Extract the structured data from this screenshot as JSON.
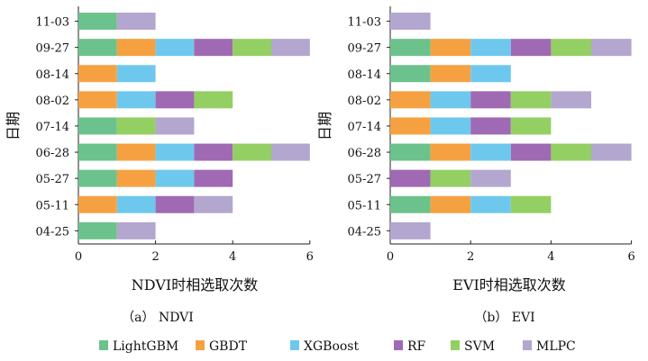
{
  "legend": {
    "items": [
      "LightGBM",
      "GBDT",
      "XGBoost",
      "RF",
      "SVM",
      "MLPC"
    ]
  },
  "colors": {
    "LightGBM": "#6cc28c",
    "GBDT": "#f5a142",
    "XGBoost": "#6ec8ee",
    "RF": "#a069b3",
    "SVM": "#93cf62",
    "MLPC": "#b3a6cf"
  },
  "chart_data": [
    {
      "type": "bar",
      "orientation": "horizontal",
      "stacked": true,
      "caption": "（a） NDVI",
      "xlabel": "NDVI时相选取次数",
      "ylabel": "日期",
      "xlim": [
        0,
        6
      ],
      "xticks": [
        "0",
        "2",
        "4",
        "6"
      ],
      "categories": [
        "11-03",
        "09-27",
        "08-14",
        "08-02",
        "07-14",
        "06-28",
        "05-27",
        "05-11",
        "04-25"
      ],
      "series": [
        {
          "name": "LightGBM",
          "values": [
            1,
            1,
            0,
            0,
            1,
            1,
            1,
            0,
            1
          ]
        },
        {
          "name": "GBDT",
          "values": [
            0,
            1,
            1,
            1,
            0,
            1,
            1,
            1,
            0
          ]
        },
        {
          "name": "XGBoost",
          "values": [
            0,
            1,
            1,
            1,
            0,
            1,
            1,
            1,
            0
          ]
        },
        {
          "name": "RF",
          "values": [
            0,
            1,
            0,
            1,
            0,
            1,
            1,
            1,
            0
          ]
        },
        {
          "name": "SVM",
          "values": [
            0,
            1,
            0,
            1,
            1,
            1,
            0,
            0,
            0
          ]
        },
        {
          "name": "MLPC",
          "values": [
            1,
            1,
            0,
            0,
            1,
            1,
            0,
            1,
            1
          ]
        }
      ]
    },
    {
      "type": "bar",
      "orientation": "horizontal",
      "stacked": true,
      "caption": "（b） EVI",
      "xlabel": "EVI时相选取次数",
      "ylabel": "日期",
      "xlim": [
        0,
        6
      ],
      "xticks": [
        "0",
        "2",
        "4",
        "6"
      ],
      "categories": [
        "11-03",
        "09-27",
        "08-14",
        "08-02",
        "07-14",
        "06-28",
        "05-27",
        "05-11",
        "04-25"
      ],
      "series": [
        {
          "name": "LightGBM",
          "values": [
            0,
            1,
            1,
            0,
            0,
            1,
            0,
            1,
            0
          ]
        },
        {
          "name": "GBDT",
          "values": [
            0,
            1,
            1,
            1,
            1,
            1,
            0,
            1,
            0
          ]
        },
        {
          "name": "XGBoost",
          "values": [
            0,
            1,
            1,
            1,
            1,
            1,
            0,
            1,
            0
          ]
        },
        {
          "name": "RF",
          "values": [
            0,
            1,
            0,
            1,
            1,
            1,
            1,
            0,
            0
          ]
        },
        {
          "name": "SVM",
          "values": [
            0,
            1,
            0,
            1,
            1,
            1,
            1,
            1,
            0
          ]
        },
        {
          "name": "MLPC",
          "values": [
            1,
            1,
            0,
            1,
            0,
            1,
            1,
            0,
            1
          ]
        }
      ]
    }
  ]
}
